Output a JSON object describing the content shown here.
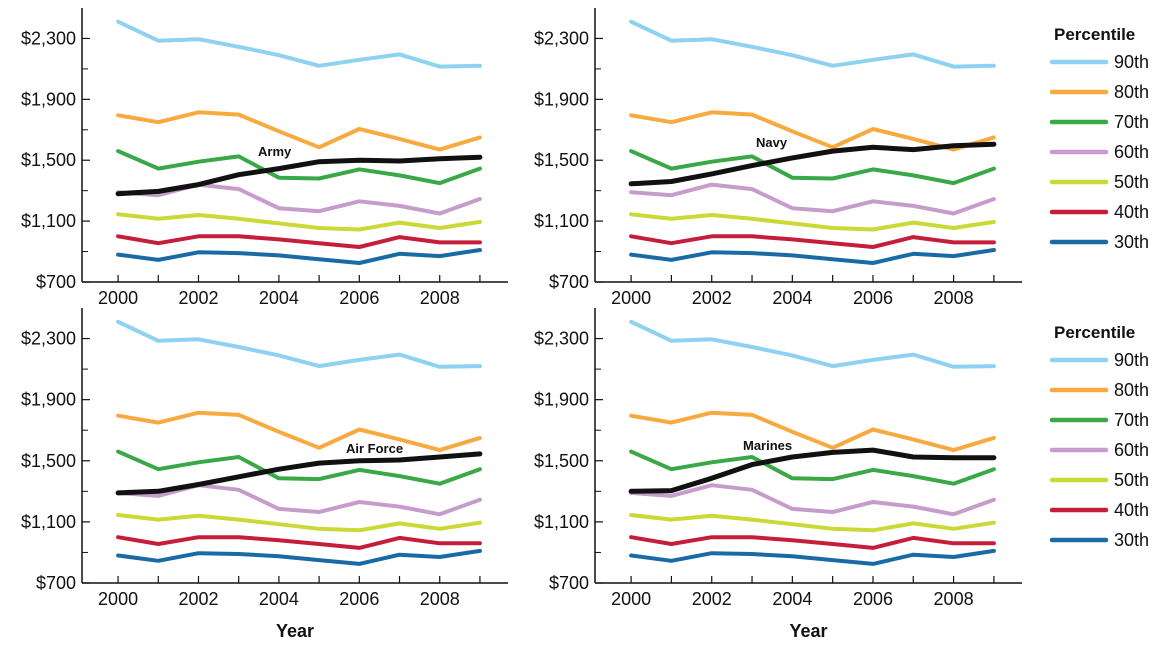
{
  "chart_data": [
    {
      "type": "line",
      "panel_label": "Army",
      "x": [
        2000,
        2001,
        2002,
        2003,
        2004,
        2005,
        2006,
        2007,
        2008,
        2009
      ],
      "ylim": [
        700,
        2500
      ],
      "yticks": [
        700,
        1100,
        1500,
        1900,
        2300
      ],
      "ytick_labels": [
        "$700",
        "$1,100",
        "$1,500",
        "$1,900",
        "$2,300"
      ],
      "xticks": [
        2000,
        2002,
        2004,
        2006,
        2008
      ],
      "xtick_labels": [
        "2000",
        "2002",
        "2004",
        "2006",
        "2008"
      ],
      "xlabel": "",
      "series": [
        {
          "name": "90th",
          "color": "#8ed1f1",
          "values": [
            2410,
            2285,
            2295,
            2245,
            2190,
            2120,
            2160,
            2195,
            2115,
            2120
          ]
        },
        {
          "name": "80th",
          "color": "#f8a93f",
          "values": [
            1795,
            1750,
            1815,
            1800,
            1690,
            1585,
            1705,
            1640,
            1570,
            1650
          ]
        },
        {
          "name": "70th",
          "color": "#3aa847",
          "values": [
            1560,
            1445,
            1490,
            1525,
            1385,
            1380,
            1440,
            1400,
            1350,
            1445
          ]
        },
        {
          "name": "60th",
          "color": "#c59ccb",
          "values": [
            1290,
            1270,
            1340,
            1310,
            1185,
            1165,
            1230,
            1200,
            1150,
            1245
          ]
        },
        {
          "name": "50th",
          "color": "#c9d935",
          "values": [
            1145,
            1115,
            1140,
            1115,
            1085,
            1055,
            1045,
            1090,
            1055,
            1095
          ]
        },
        {
          "name": "40th",
          "color": "#c41e3a",
          "values": [
            1000,
            955,
            1000,
            1000,
            980,
            955,
            930,
            995,
            960,
            960
          ]
        },
        {
          "name": "30th",
          "color": "#1a6aa6",
          "values": [
            880,
            845,
            895,
            890,
            875,
            850,
            825,
            885,
            870,
            910
          ]
        }
      ],
      "branch_series": {
        "name": "Army",
        "color": "#111111",
        "values": [
          1280,
          1295,
          1340,
          1405,
          1445,
          1490,
          1500,
          1495,
          1510,
          1520
        ]
      }
    },
    {
      "type": "line",
      "panel_label": "Navy",
      "x": [
        2000,
        2001,
        2002,
        2003,
        2004,
        2005,
        2006,
        2007,
        2008,
        2009
      ],
      "ylim": [
        700,
        2500
      ],
      "yticks": [
        700,
        1100,
        1500,
        1900,
        2300
      ],
      "ytick_labels": [
        "$700",
        "$1,100",
        "$1,500",
        "$1,900",
        "$2,300"
      ],
      "xticks": [
        2000,
        2002,
        2004,
        2006,
        2008
      ],
      "xtick_labels": [
        "2000",
        "2002",
        "2004",
        "2006",
        "2008"
      ],
      "xlabel": "",
      "series": [
        {
          "name": "90th",
          "color": "#8ed1f1",
          "values": [
            2410,
            2285,
            2295,
            2245,
            2190,
            2120,
            2160,
            2195,
            2115,
            2120
          ]
        },
        {
          "name": "80th",
          "color": "#f8a93f",
          "values": [
            1795,
            1750,
            1815,
            1800,
            1690,
            1585,
            1705,
            1640,
            1570,
            1650
          ]
        },
        {
          "name": "70th",
          "color": "#3aa847",
          "values": [
            1560,
            1445,
            1490,
            1525,
            1385,
            1380,
            1440,
            1400,
            1350,
            1445
          ]
        },
        {
          "name": "60th",
          "color": "#c59ccb",
          "values": [
            1290,
            1270,
            1340,
            1310,
            1185,
            1165,
            1230,
            1200,
            1150,
            1245
          ]
        },
        {
          "name": "50th",
          "color": "#c9d935",
          "values": [
            1145,
            1115,
            1140,
            1115,
            1085,
            1055,
            1045,
            1090,
            1055,
            1095
          ]
        },
        {
          "name": "40th",
          "color": "#c41e3a",
          "values": [
            1000,
            955,
            1000,
            1000,
            980,
            955,
            930,
            995,
            960,
            960
          ]
        },
        {
          "name": "30th",
          "color": "#1a6aa6",
          "values": [
            880,
            845,
            895,
            890,
            875,
            850,
            825,
            885,
            870,
            910
          ]
        }
      ],
      "branch_series": {
        "name": "Navy",
        "color": "#111111",
        "values": [
          1345,
          1360,
          1410,
          1465,
          1515,
          1560,
          1585,
          1570,
          1595,
          1605
        ]
      }
    },
    {
      "type": "line",
      "panel_label": "Air Force",
      "x": [
        2000,
        2001,
        2002,
        2003,
        2004,
        2005,
        2006,
        2007,
        2008,
        2009
      ],
      "ylim": [
        700,
        2500
      ],
      "yticks": [
        700,
        1100,
        1500,
        1900,
        2300
      ],
      "ytick_labels": [
        "$700",
        "$1,100",
        "$1,500",
        "$1,900",
        "$2,300"
      ],
      "xticks": [
        2000,
        2002,
        2004,
        2006,
        2008
      ],
      "xtick_labels": [
        "2000",
        "2002",
        "2004",
        "2006",
        "2008"
      ],
      "xlabel": "Year",
      "series": [
        {
          "name": "90th",
          "color": "#8ed1f1",
          "values": [
            2410,
            2285,
            2295,
            2245,
            2190,
            2120,
            2160,
            2195,
            2115,
            2120
          ]
        },
        {
          "name": "80th",
          "color": "#f8a93f",
          "values": [
            1795,
            1750,
            1815,
            1800,
            1690,
            1585,
            1705,
            1640,
            1570,
            1650
          ]
        },
        {
          "name": "70th",
          "color": "#3aa847",
          "values": [
            1560,
            1445,
            1490,
            1525,
            1385,
            1380,
            1440,
            1400,
            1350,
            1445
          ]
        },
        {
          "name": "60th",
          "color": "#c59ccb",
          "values": [
            1290,
            1270,
            1340,
            1310,
            1185,
            1165,
            1230,
            1200,
            1150,
            1245
          ]
        },
        {
          "name": "50th",
          "color": "#c9d935",
          "values": [
            1145,
            1115,
            1140,
            1115,
            1085,
            1055,
            1045,
            1090,
            1055,
            1095
          ]
        },
        {
          "name": "40th",
          "color": "#c41e3a",
          "values": [
            1000,
            955,
            1000,
            1000,
            980,
            955,
            930,
            995,
            960,
            960
          ]
        },
        {
          "name": "30th",
          "color": "#1a6aa6",
          "values": [
            880,
            845,
            895,
            890,
            875,
            850,
            825,
            885,
            870,
            910
          ]
        }
      ],
      "branch_series": {
        "name": "Air Force",
        "color": "#111111",
        "values": [
          1290,
          1300,
          1345,
          1395,
          1445,
          1485,
          1500,
          1505,
          1525,
          1545
        ]
      }
    },
    {
      "type": "line",
      "panel_label": "Marines",
      "x": [
        2000,
        2001,
        2002,
        2003,
        2004,
        2005,
        2006,
        2007,
        2008,
        2009
      ],
      "ylim": [
        700,
        2500
      ],
      "yticks": [
        700,
        1100,
        1500,
        1900,
        2300
      ],
      "ytick_labels": [
        "$700",
        "$1,100",
        "$1,500",
        "$1,900",
        "$2,300"
      ],
      "xticks": [
        2000,
        2002,
        2004,
        2006,
        2008
      ],
      "xtick_labels": [
        "2000",
        "2002",
        "2004",
        "2006",
        "2008"
      ],
      "xlabel": "Year",
      "series": [
        {
          "name": "90th",
          "color": "#8ed1f1",
          "values": [
            2410,
            2285,
            2295,
            2245,
            2190,
            2120,
            2160,
            2195,
            2115,
            2120
          ]
        },
        {
          "name": "80th",
          "color": "#f8a93f",
          "values": [
            1795,
            1750,
            1815,
            1800,
            1690,
            1585,
            1705,
            1640,
            1570,
            1650
          ]
        },
        {
          "name": "70th",
          "color": "#3aa847",
          "values": [
            1560,
            1445,
            1490,
            1525,
            1385,
            1380,
            1440,
            1400,
            1350,
            1445
          ]
        },
        {
          "name": "60th",
          "color": "#c59ccb",
          "values": [
            1290,
            1270,
            1340,
            1310,
            1185,
            1165,
            1230,
            1200,
            1150,
            1245
          ]
        },
        {
          "name": "50th",
          "color": "#c9d935",
          "values": [
            1145,
            1115,
            1140,
            1115,
            1085,
            1055,
            1045,
            1090,
            1055,
            1095
          ]
        },
        {
          "name": "40th",
          "color": "#c41e3a",
          "values": [
            1000,
            955,
            1000,
            1000,
            980,
            955,
            930,
            995,
            960,
            960
          ]
        },
        {
          "name": "30th",
          "color": "#1a6aa6",
          "values": [
            880,
            845,
            895,
            890,
            875,
            850,
            825,
            885,
            870,
            910
          ]
        }
      ],
      "branch_series": {
        "name": "Marines",
        "color": "#111111",
        "values": [
          1300,
          1305,
          1385,
          1475,
          1525,
          1555,
          1570,
          1525,
          1520,
          1520
        ]
      }
    }
  ],
  "legend": {
    "title": "Percentile",
    "items": [
      {
        "label": "90th",
        "color": "#8ed1f1"
      },
      {
        "label": "80th",
        "color": "#f8a93f"
      },
      {
        "label": "70th",
        "color": "#3aa847"
      },
      {
        "label": "60th",
        "color": "#c59ccb"
      },
      {
        "label": "50th",
        "color": "#c9d935"
      },
      {
        "label": "40th",
        "color": "#c41e3a"
      },
      {
        "label": "30th",
        "color": "#1a6aa6"
      }
    ]
  }
}
